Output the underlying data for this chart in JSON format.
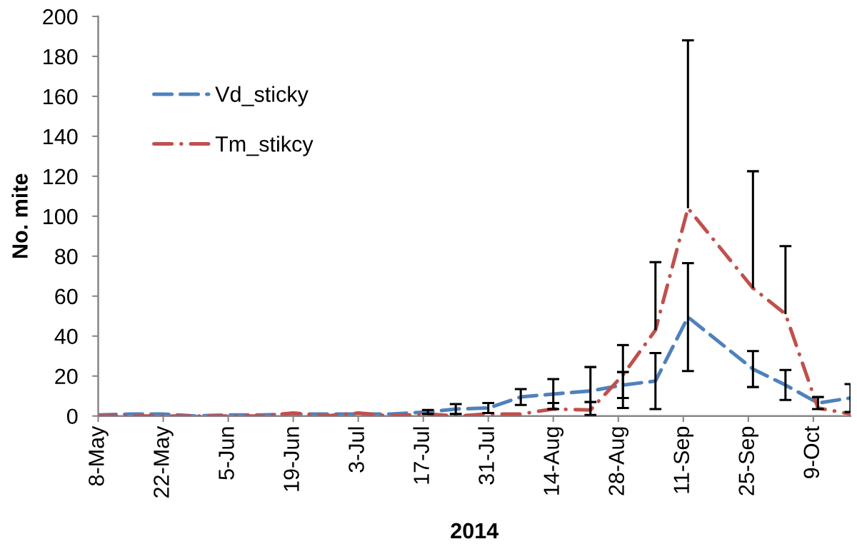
{
  "chart_data": {
    "type": "line",
    "xlabel": "2014",
    "ylabel": "No. mite",
    "legend": "top left",
    "x": [
      "2014-05-08",
      "2014-05-15",
      "2014-05-22",
      "2014-05-29",
      "2014-06-05",
      "2014-06-12",
      "2014-06-19",
      "2014-06-26",
      "2014-07-03",
      "2014-07-10",
      "2014-07-18",
      "2014-07-24",
      "2014-07-31",
      "2014-08-07",
      "2014-08-14",
      "2014-08-22",
      "2014-08-29",
      "2014-09-05",
      "2014-09-12",
      "2014-09-26",
      "2014-10-03",
      "2014-10-10",
      "2014-10-17"
    ],
    "series": [
      {
        "name": "Vd_sticky",
        "color": "#4f81bd",
        "line_style": "dashed",
        "values": [
          0.5,
          1,
          1,
          0,
          0.5,
          0.5,
          1,
          1,
          1,
          1,
          2,
          3.5,
          4,
          9.5,
          11,
          12.5,
          15.5,
          17.5,
          49.5,
          23.5,
          15.5,
          6.5,
          9
        ],
        "errors": [
          null,
          null,
          null,
          null,
          null,
          null,
          null,
          null,
          null,
          null,
          1,
          2.5,
          2.5,
          4,
          7.5,
          12,
          6.5,
          14,
          27,
          9,
          7.5,
          3,
          7
        ]
      },
      {
        "name": "Tm_stikcy",
        "color": "#c0504d",
        "line_style": "dashdot",
        "values": [
          0,
          0,
          0,
          0,
          0,
          0,
          1.5,
          0,
          1.5,
          0,
          1,
          0,
          1,
          1,
          3.5,
          3,
          20.5,
          43,
          104,
          64,
          51,
          4,
          1
        ],
        "errors": [
          null,
          null,
          null,
          null,
          null,
          null,
          null,
          null,
          null,
          null,
          null,
          null,
          null,
          null,
          [
            3.5,
            6.5
          ],
          [
            3,
            7
          ],
          [
            4,
            35.5
          ],
          [
            43,
            77
          ],
          [
            104,
            188
          ],
          [
            64,
            122.5
          ],
          [
            51,
            85
          ],
          null,
          null
        ]
      }
    ],
    "xlim": [
      "2014-05-08",
      "2014-10-17"
    ],
    "xticks": [
      {
        "value": "2014-05-08",
        "label": "8-May"
      },
      {
        "value": "2014-05-22",
        "label": "22-May"
      },
      {
        "value": "2014-06-05",
        "label": "5-Jun"
      },
      {
        "value": "2014-06-19",
        "label": "19-Jun"
      },
      {
        "value": "2014-07-03",
        "label": "3-Jul"
      },
      {
        "value": "2014-07-17",
        "label": "17-Jul"
      },
      {
        "value": "2014-07-31",
        "label": "31-Jul"
      },
      {
        "value": "2014-08-14",
        "label": "14-Aug"
      },
      {
        "value": "2014-08-28",
        "label": "28-Aug"
      },
      {
        "value": "2014-09-11",
        "label": "11-Sep"
      },
      {
        "value": "2014-09-25",
        "label": "25-Sep"
      },
      {
        "value": "2014-10-09",
        "label": "9-Oct"
      }
    ],
    "ylim": [
      0,
      200
    ],
    "yticks": [
      0,
      20,
      40,
      60,
      80,
      100,
      120,
      140,
      160,
      180,
      200
    ]
  }
}
